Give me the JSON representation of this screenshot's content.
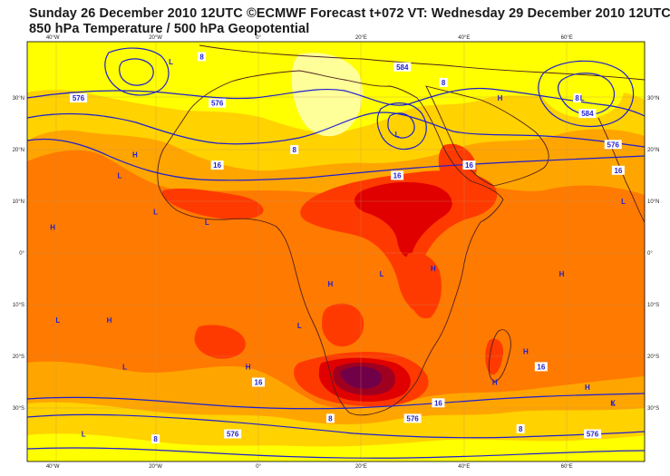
{
  "title_line1": "Sunday 26 December 2010 12UTC ©ECMWF Forecast t+072 VT: Wednesday 29 December 2010 12UTC",
  "title_line2": "850 hPa Temperature / 500 hPa Geopotential",
  "axes": {
    "lon_labels": [
      "40°W",
      "20°W",
      "0°",
      "20°E",
      "40°E",
      "60°E"
    ],
    "lat_labels": [
      "30°N",
      "20°N",
      "10°N",
      "0°",
      "10°S",
      "20°S",
      "30°S"
    ]
  },
  "colors": {
    "very_cold": "#ffff99",
    "cold": "#ffff00",
    "cool": "#ffd200",
    "mild": "#ffa500",
    "warm": "#ff7a00",
    "hot": "#ff3a00",
    "very_hot": "#e00000",
    "extreme": "#a00020",
    "max": "#700048",
    "contour": "#1f1fcf",
    "coast": "#502020",
    "grid": "#c09060"
  },
  "contour_labels": [
    {
      "text": "8",
      "lon": -11,
      "lat": 38
    },
    {
      "text": "576",
      "lon": -8,
      "lat": 29
    },
    {
      "text": "576",
      "lon": -35,
      "lat": 30
    },
    {
      "text": "16",
      "lon": -8,
      "lat": 17
    },
    {
      "text": "8",
      "lon": 7,
      "lat": 20
    },
    {
      "text": "584",
      "lon": 28,
      "lat": 36
    },
    {
      "text": "8",
      "lon": 36,
      "lat": 33
    },
    {
      "text": "16",
      "lon": 27,
      "lat": 15
    },
    {
      "text": "16",
      "lon": 41,
      "lat": 17
    },
    {
      "text": "8",
      "lon": 62,
      "lat": 30
    },
    {
      "text": "584",
      "lon": 64,
      "lat": 27
    },
    {
      "text": "576",
      "lon": 69,
      "lat": 21
    },
    {
      "text": "16",
      "lon": 70,
      "lat": 16
    },
    {
      "text": "16",
      "lon": 0,
      "lat": -25
    },
    {
      "text": "16",
      "lon": 55,
      "lat": -22
    },
    {
      "text": "16",
      "lon": 35,
      "lat": -29
    },
    {
      "text": "8",
      "lon": 14,
      "lat": -32
    },
    {
      "text": "8",
      "lon": -20,
      "lat": -36
    },
    {
      "text": "576",
      "lon": -5,
      "lat": -35
    },
    {
      "text": "576",
      "lon": 30,
      "lat": -32
    },
    {
      "text": "576",
      "lon": 65,
      "lat": -35
    },
    {
      "text": "8",
      "lon": 51,
      "lat": -34
    }
  ],
  "pressure_centres": [
    {
      "text": "L",
      "lon": -17,
      "lat": 37
    },
    {
      "text": "L",
      "lon": 27,
      "lat": 23
    },
    {
      "text": "L",
      "lon": 63,
      "lat": 30
    },
    {
      "text": "H",
      "lon": 47,
      "lat": 30
    },
    {
      "text": "H",
      "lon": -24,
      "lat": 19
    },
    {
      "text": "L",
      "lon": -27,
      "lat": 15
    },
    {
      "text": "H",
      "lon": -40,
      "lat": 5
    },
    {
      "text": "L",
      "lon": -20,
      "lat": 8
    },
    {
      "text": "L",
      "lon": -10,
      "lat": 6
    },
    {
      "text": "H",
      "lon": 14,
      "lat": -6
    },
    {
      "text": "L",
      "lon": 24,
      "lat": -4
    },
    {
      "text": "H",
      "lon": 34,
      "lat": -3
    },
    {
      "text": "L",
      "lon": -39,
      "lat": -13
    },
    {
      "text": "H",
      "lon": -29,
      "lat": -13
    },
    {
      "text": "L",
      "lon": 8,
      "lat": -14
    },
    {
      "text": "L",
      "lon": -26,
      "lat": -22
    },
    {
      "text": "H",
      "lon": -2,
      "lat": -22
    },
    {
      "text": "H",
      "lon": 46,
      "lat": -25
    },
    {
      "text": "H",
      "lon": 52,
      "lat": -19
    },
    {
      "text": "H",
      "lon": 59,
      "lat": -4
    },
    {
      "text": "H",
      "lon": 64,
      "lat": -26
    },
    {
      "text": "K",
      "lon": 69,
      "lat": -29
    },
    {
      "text": "L",
      "lon": -34,
      "lat": -35
    },
    {
      "text": "L",
      "lon": 71,
      "lat": 10
    },
    {
      "text": "L",
      "lon": 69,
      "lat": -29
    }
  ]
}
